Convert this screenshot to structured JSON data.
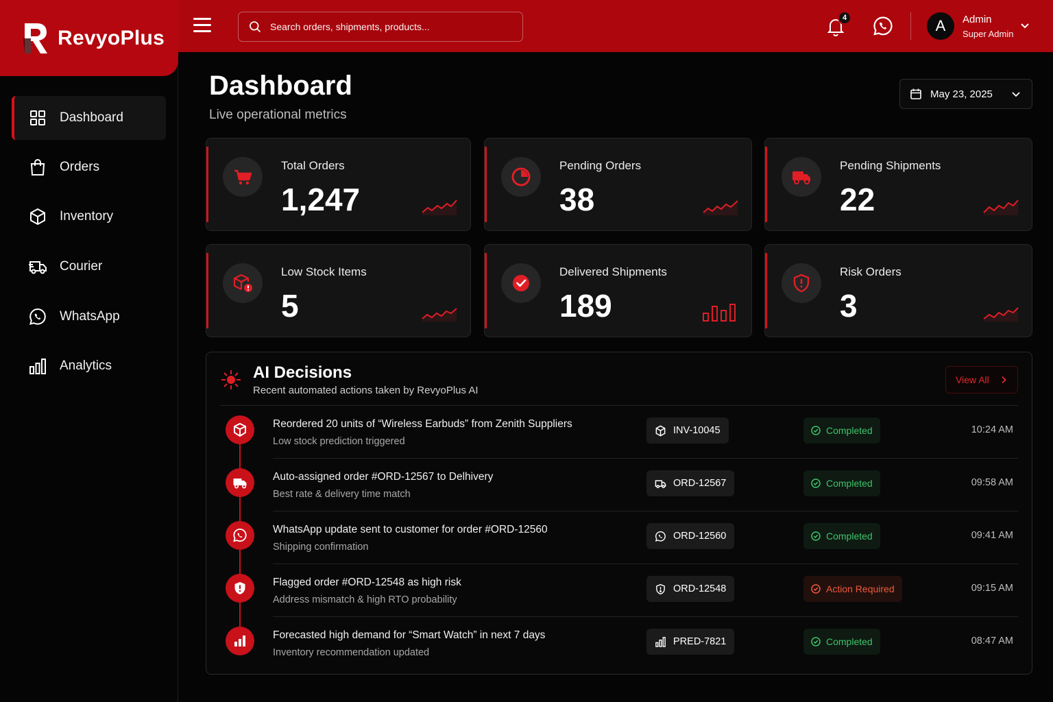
{
  "brand": {
    "name": "RevyoPlus",
    "primary": "#ad060d",
    "accent": "#d4121a"
  },
  "topbar": {
    "search_placeholder": "Search orders, shipments, products...",
    "notifications_count": "4",
    "user": {
      "initial": "A",
      "name": "Admin",
      "role": "Super Admin"
    }
  },
  "sidebar": {
    "items": [
      {
        "label": "Dashboard",
        "icon": "grid-icon",
        "active": true
      },
      {
        "label": "Orders",
        "icon": "shopping-bag-icon"
      },
      {
        "label": "Inventory",
        "icon": "box-icon"
      },
      {
        "label": "Courier",
        "icon": "truck-icon"
      },
      {
        "label": "WhatsApp",
        "icon": "whatsapp-icon"
      },
      {
        "label": "Analytics",
        "icon": "bar-chart-icon"
      }
    ]
  },
  "header": {
    "title": "Dashboard",
    "subtitle": "Live operational metrics",
    "date": "May 23, 2025"
  },
  "stats": [
    {
      "label": "Total Orders",
      "value": "1,247",
      "icon": "cart-icon"
    },
    {
      "label": "Pending Orders",
      "value": "38",
      "icon": "pie-clock-icon"
    },
    {
      "label": "Pending Shipments",
      "value": "22",
      "icon": "truck-icon"
    },
    {
      "label": "Low Stock Items",
      "value": "5",
      "icon": "box-alert-icon"
    },
    {
      "label": "Delivered Shipments",
      "value": "189",
      "icon": "check-circle-icon"
    },
    {
      "label": "Risk Orders",
      "value": "3",
      "icon": "shield-alert-icon"
    }
  ],
  "ai_panel": {
    "title": "AI Decisions",
    "subtitle": "Recent automated actions taken by RevyoPlus AI",
    "view_all": "View All",
    "rows": [
      {
        "title": "Reordered 20 units of “Wireless Earbuds” from Zenith Suppliers",
        "desc": "Low stock prediction triggered",
        "ref": "INV-10045",
        "status": "Completed",
        "time": "10:24 AM",
        "icon": "box-icon"
      },
      {
        "title": "Auto-assigned order #ORD-12567 to Delhivery",
        "desc": "Best rate & delivery time match",
        "ref": "ORD-12567",
        "status": "Completed",
        "time": "09:58 AM",
        "icon": "truck-icon"
      },
      {
        "title": "WhatsApp update sent to customer for order #ORD-12560",
        "desc": "Shipping confirmation",
        "ref": "ORD-12560",
        "status": "Completed",
        "time": "09:41 AM",
        "icon": "whatsapp-icon"
      },
      {
        "title": "Flagged order #ORD-12548 as high risk",
        "desc": "Address mismatch & high RTO probability",
        "ref": "ORD-12548",
        "status": "Action Required",
        "time": "09:15 AM",
        "icon": "shield-alert-icon"
      },
      {
        "title": "Forecasted high demand for “Smart Watch” in next 7 days",
        "desc": "Inventory recommendation updated",
        "ref": "PRED-7821",
        "status": "Completed",
        "time": "08:47 AM",
        "icon": "bar-chart-icon"
      }
    ]
  }
}
